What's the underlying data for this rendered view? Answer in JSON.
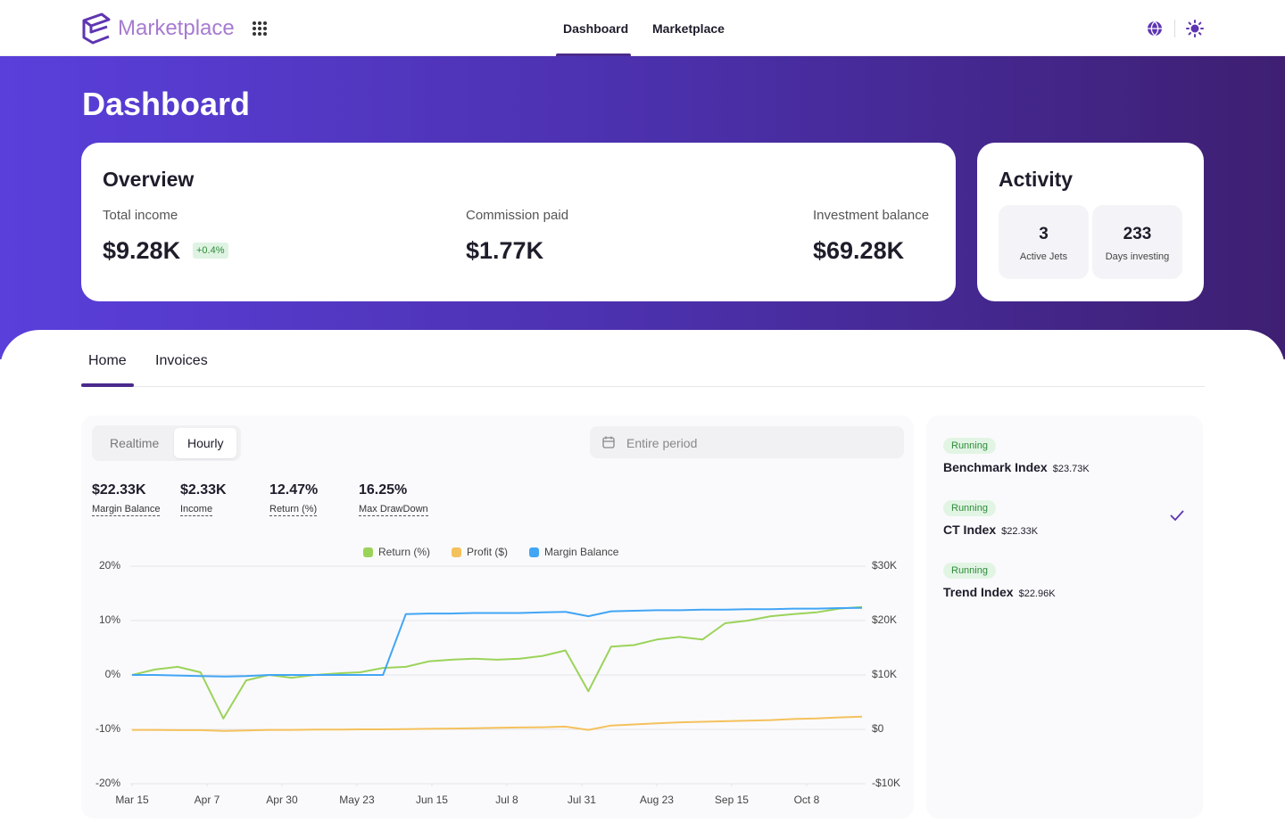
{
  "header": {
    "brand": "Marketplace",
    "nav": [
      "Dashboard",
      "Marketplace"
    ]
  },
  "hero": {
    "title": "Dashboard"
  },
  "overview": {
    "title": "Overview",
    "metrics": [
      {
        "label": "Total income",
        "value": "$9.28K",
        "change": "+0.4%"
      },
      {
        "label": "Commission paid",
        "value": "$1.77K"
      },
      {
        "label": "Investment balance",
        "value": "$69.28K"
      }
    ]
  },
  "activity": {
    "title": "Activity",
    "items": [
      {
        "value": 3,
        "label": "Active Jets"
      },
      {
        "value": 233,
        "label": "Days investing"
      }
    ]
  },
  "tabs": [
    "Home",
    "Invoices"
  ],
  "panel": {
    "modes": [
      "Realtime",
      "Hourly"
    ],
    "period": "Entire period",
    "stats": [
      {
        "value": "$22.33K",
        "label": "Margin Balance"
      },
      {
        "value": "$2.33K",
        "label": "Income"
      },
      {
        "value": "12.47%",
        "label": "Return (%)"
      },
      {
        "value": "16.25%",
        "label": "Max DrawDown"
      }
    ]
  },
  "chart_data": {
    "type": "line",
    "x": [
      "Mar 15",
      "Mar 22",
      "Mar 29",
      "Apr 5",
      "Apr 12",
      "Apr 19",
      "Apr 26",
      "May 3",
      "May 10",
      "May 17",
      "May 24",
      "May 31",
      "Jun 7",
      "Jun 14",
      "Jun 21",
      "Jun 28",
      "Jul 5",
      "Jul 12",
      "Jul 19",
      "Jul 26",
      "Aug 2",
      "Aug 9",
      "Aug 16",
      "Aug 23",
      "Aug 30",
      "Sep 6",
      "Sep 13",
      "Sep 20",
      "Sep 27",
      "Oct 4",
      "Oct 11",
      "Oct 18",
      "Oct 25"
    ],
    "xlim": [
      "Mar 15",
      "Oct 25"
    ],
    "xticks": [
      "Mar 15",
      "Apr 7",
      "Apr 30",
      "May 23",
      "Jun 15",
      "Jul 8",
      "Jul 31",
      "Aug 23",
      "Sep 15",
      "Oct 8"
    ],
    "ylim": [
      -20,
      20
    ],
    "yticks": [
      {
        "value": -20,
        "label": "-20%"
      },
      {
        "value": -10,
        "label": "-10%"
      },
      {
        "value": 0,
        "label": "0%"
      },
      {
        "value": 10,
        "label": "10%"
      },
      {
        "value": 20,
        "label": "20%"
      }
    ],
    "y2lim": [
      -10000,
      30000
    ],
    "y2ticks": [
      {
        "value": -10000,
        "label": "-$10K"
      },
      {
        "value": 0,
        "label": "$0"
      },
      {
        "value": 10000,
        "label": "$10K"
      },
      {
        "value": 20000,
        "label": "$20K"
      },
      {
        "value": 30000,
        "label": "$30K"
      }
    ],
    "grid": true,
    "series": [
      {
        "name": "Return (%)",
        "color": "#9bd35a",
        "axis": "y",
        "values": [
          0,
          1,
          1.5,
          0.5,
          -8,
          -1,
          0,
          -0.5,
          0,
          0.3,
          0.5,
          1.3,
          1.5,
          2.5,
          2.8,
          3,
          2.8,
          3,
          3.5,
          4.5,
          -3,
          5.2,
          5.5,
          6.5,
          7,
          6.5,
          9.5,
          10,
          10.8,
          11.2,
          11.5,
          12.2,
          12.5
        ]
      },
      {
        "name": "Profit ($)",
        "color": "#f5c15c",
        "axis": "y2",
        "values": [
          -100,
          -100,
          -150,
          -150,
          -300,
          -200,
          -100,
          -100,
          -50,
          -50,
          0,
          0,
          50,
          100,
          150,
          200,
          300,
          350,
          400,
          500,
          -100,
          700,
          900,
          1100,
          1300,
          1400,
          1500,
          1600,
          1700,
          1900,
          2000,
          2200,
          2330
        ]
      },
      {
        "name": "Margin Balance",
        "color": "#42a5f5",
        "axis": "y2",
        "values": [
          10000,
          10000,
          9900,
          9800,
          9700,
          9800,
          10000,
          10000,
          10000,
          10000,
          10000,
          10000,
          21200,
          21300,
          21300,
          21400,
          21400,
          21400,
          21500,
          21600,
          20800,
          21700,
          21800,
          21900,
          21900,
          22000,
          22000,
          22100,
          22100,
          22200,
          22200,
          22300,
          22330
        ]
      }
    ]
  },
  "strategies": [
    {
      "status": "Running",
      "name": "Benchmark Index",
      "value": "$23.73K"
    },
    {
      "status": "Running",
      "name": "CT Index",
      "value": "$22.33K"
    },
    {
      "status": "Running",
      "name": "Trend Index",
      "value": "$22.96K"
    }
  ]
}
